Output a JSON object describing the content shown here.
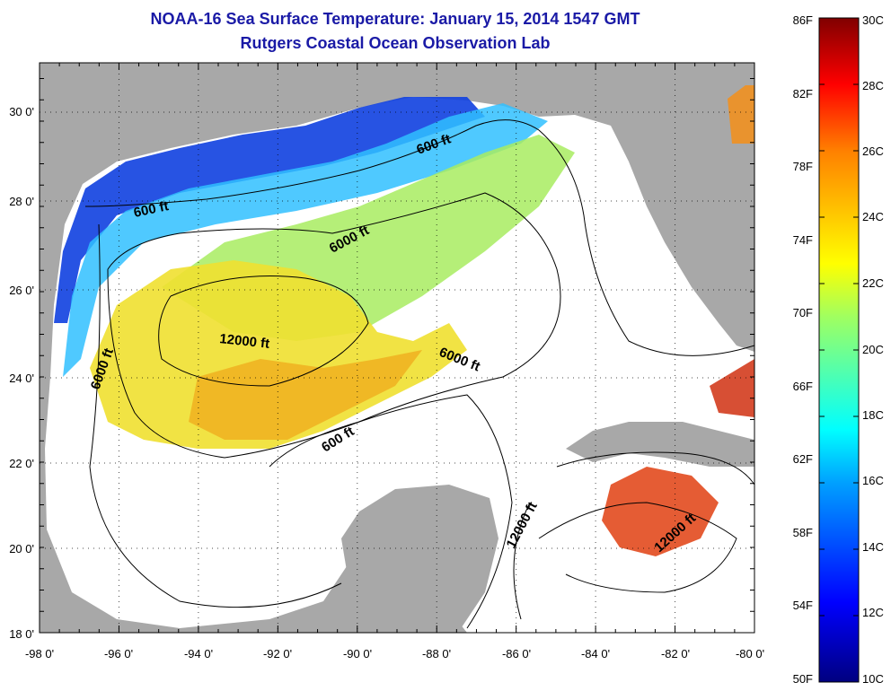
{
  "title": "NOAA-16 Sea Surface Temperature:  January 15, 2014 1547 GMT",
  "subtitle": "Rutgers Coastal Ocean Observation Lab",
  "map": {
    "lon_ticks": [
      "-98 0'",
      "-96 0'",
      "-94 0'",
      "-92 0'",
      "-90 0'",
      "-88 0'",
      "-86 0'",
      "-84 0'",
      "-82 0'",
      "-80 0'"
    ],
    "lat_ticks": [
      "30 0'",
      "28 0'",
      "26 0'",
      "24 0'",
      "22 0'",
      "20 0'",
      "18 0'"
    ],
    "contour_labels": [
      "600 ft",
      "600 ft",
      "6000 ft",
      "6000 ft",
      "12000 ft",
      "6000 ft",
      "600 ft",
      "12000 ft",
      "12000 ft"
    ]
  },
  "colorbar": {
    "left_labels": [
      "86F",
      "82F",
      "78F",
      "74F",
      "70F",
      "66F",
      "62F",
      "58F",
      "54F",
      "50F"
    ],
    "right_labels": [
      "30C",
      "28C",
      "26C",
      "24C",
      "22C",
      "20C",
      "18C",
      "16C",
      "14C",
      "12C",
      "10C"
    ]
  },
  "colors": {
    "land": "#a8a8a8",
    "ocean": "#ffffff",
    "title": "#1a1aa6"
  }
}
